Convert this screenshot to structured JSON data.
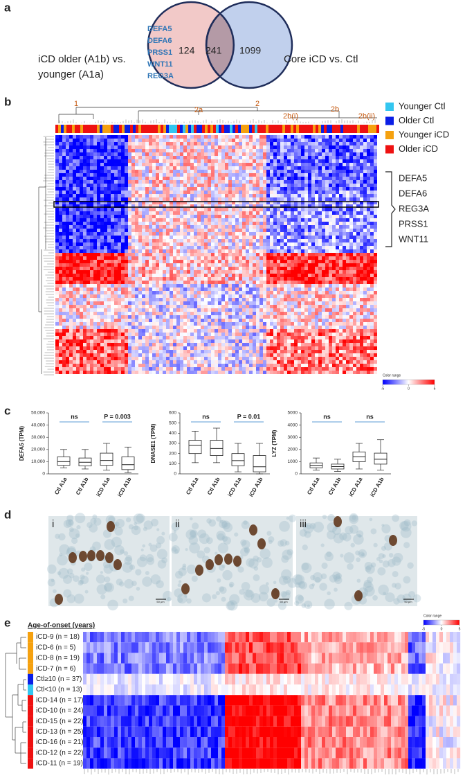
{
  "panel_labels": [
    "a",
    "b",
    "c",
    "d",
    "e"
  ],
  "panel_a": {
    "left_label": [
      "iCD older (A1b) vs.",
      "younger (A1a)"
    ],
    "right_label": "Core iCD vs. Ctl",
    "genes": [
      "DEFA5",
      "DEFA6",
      "PRSS1",
      "WNT11",
      "REG3A"
    ],
    "counts": [
      124,
      241,
      1099
    ]
  },
  "panel_b": {
    "clusters": [
      "1",
      "2a",
      "2",
      "2b(i)",
      "2b",
      "2b(ii)"
    ],
    "legend": [
      {
        "name": "Younger Ctl",
        "color": "#33c6f0"
      },
      {
        "name": "Older Ctl",
        "color": "#0a1ee6"
      },
      {
        "name": "Younger iCD",
        "color": "#f5a10f"
      },
      {
        "name": "Older iCD",
        "color": "#ee1111"
      }
    ],
    "genes": [
      "DEFA5",
      "DEFA6",
      "REG3A",
      "PRSS1",
      "WNT11"
    ],
    "color_range": {
      "label": "Color range",
      "ticks": [
        -5,
        0,
        5
      ]
    }
  },
  "panel_c": {
    "plots": [
      {
        "ylabel": "DEFA5 (TPM)",
        "ylim": [
          0,
          50000
        ],
        "yticks": [
          0,
          {
            "value": 10000,
            "label": "10,000"
          },
          {
            "value": 20000,
            "label": "20,000"
          },
          {
            "value": 30000,
            "label": "30,000"
          },
          {
            "value": 40000,
            "label": "40,000"
          },
          {
            "value": 50000,
            "label": "50,000"
          }
        ],
        "categories": [
          "Ctl A1a",
          "Ctl A1b",
          "iCD A1a",
          "iCD A1b"
        ],
        "boxes": [
          {
            "low": 5000,
            "q1": 7000,
            "median": 10000,
            "q3": 14000,
            "high": 20000
          },
          {
            "low": 4000,
            "q1": 6500,
            "median": 9500,
            "q3": 13000,
            "high": 20000
          },
          {
            "low": 3000,
            "q1": 7000,
            "median": 11000,
            "q3": 17000,
            "high": 25000
          },
          {
            "low": 1000,
            "q1": 3500,
            "median": 7500,
            "q3": 14000,
            "high": 22000
          }
        ],
        "annotations": [
          "ns",
          "P = 0.003"
        ]
      },
      {
        "ylabel": "DNASE1 (TPM)",
        "ylim": [
          0,
          600
        ],
        "yticks": [
          0,
          100,
          200,
          300,
          400,
          500,
          600
        ],
        "categories": [
          "Ctl A1a",
          "Ctl A1b",
          "iCD A1a",
          "iCD A1b"
        ],
        "boxes": [
          {
            "low": 110,
            "q1": 200,
            "median": 280,
            "q3": 330,
            "high": 420
          },
          {
            "low": 110,
            "q1": 180,
            "median": 250,
            "q3": 330,
            "high": 450
          },
          {
            "low": 20,
            "q1": 80,
            "median": 130,
            "q3": 200,
            "high": 300
          },
          {
            "low": 0,
            "q1": 20,
            "median": 70,
            "q3": 180,
            "high": 300
          }
        ],
        "annotations": [
          "ns",
          "P = 0.01"
        ]
      },
      {
        "ylabel": "LYZ (TPM)",
        "ylim": [
          0,
          5000
        ],
        "yticks": [
          0,
          1000,
          2000,
          3000,
          4000,
          5000
        ],
        "categories": [
          "Ctl A1a",
          "Ctl A1b",
          "iCD A1a",
          "iCD A1b"
        ],
        "boxes": [
          {
            "low": 300,
            "q1": 500,
            "median": 700,
            "q3": 900,
            "high": 1300
          },
          {
            "low": 200,
            "q1": 400,
            "median": 600,
            "q3": 800,
            "high": 1200
          },
          {
            "low": 400,
            "q1": 1000,
            "median": 1400,
            "q3": 1800,
            "high": 2500
          },
          {
            "low": 300,
            "q1": 800,
            "median": 1200,
            "q3": 1700,
            "high": 2800
          }
        ],
        "annotations": [
          "ns",
          "ns"
        ]
      }
    ]
  },
  "panel_d": {
    "images": [
      "i",
      "ii",
      "iii"
    ],
    "scale_bar": "50 μm"
  },
  "panel_e": {
    "title": "Age-of-onset (years)",
    "color_range": {
      "label": "Color range",
      "ticks": [
        -5,
        0,
        5
      ]
    },
    "rows": [
      {
        "label": "iCD-9 (n = 18)",
        "color": "#f5a10f"
      },
      {
        "label": "iCD-6 (n = 5)",
        "color": "#f5a10f"
      },
      {
        "label": "iCD-8 (n = 19)",
        "color": "#f5a10f"
      },
      {
        "label": "iCD-7 (n = 6)",
        "color": "#f5a10f"
      },
      {
        "label": "Ctl≥10 (n = 37)",
        "color": "#0a1ee6"
      },
      {
        "label": "Ctl<10 (n = 13)",
        "color": "#33c6f0"
      },
      {
        "label": "iCD-14 (n = 17)",
        "color": "#ee1111"
      },
      {
        "label": "iCD-10 (n = 24)",
        "color": "#ee1111"
      },
      {
        "label": "iCD-15 (n = 22)",
        "color": "#ee1111"
      },
      {
        "label": "iCD-13 (n = 25)",
        "color": "#ee1111"
      },
      {
        "label": "iCD-16 (n = 21)",
        "color": "#ee1111"
      },
      {
        "label": "iCD-12 (n = 22)",
        "color": "#ee1111"
      },
      {
        "label": "iCD-11 (n = 19)",
        "color": "#ee1111"
      }
    ]
  }
}
